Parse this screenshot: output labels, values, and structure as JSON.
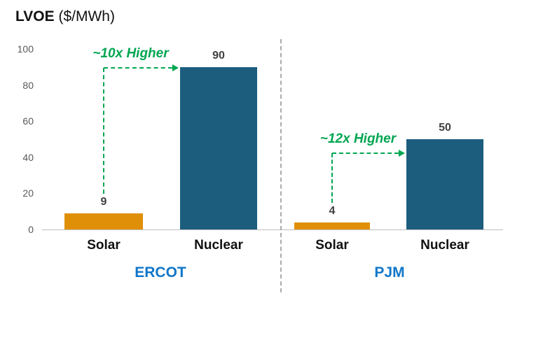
{
  "title": {
    "label_bold": "LVOE",
    "label_unit": " ($/MWh)"
  },
  "colors": {
    "solar_bar": "#E09008",
    "nuclear_bar": "#1C5D7E",
    "annotation_green": "#00A651",
    "group_label_blue": "#0F76C8",
    "axis_line": "#BFBFBF",
    "divider": "#ABABAB",
    "tick_text": "#595959",
    "value_text": "#404040"
  },
  "chart_data": {
    "type": "bar",
    "title": "LVOE ($/MWh)",
    "ylabel": "LVOE ($/MWh)",
    "xlabel": "",
    "ylim": [
      0,
      100
    ],
    "yticks": [
      0,
      20,
      40,
      60,
      80,
      100
    ],
    "categories": [
      "Solar",
      "Nuclear"
    ],
    "groups": [
      {
        "name": "ERCOT",
        "annotation": "~10x Higher",
        "values": [
          9,
          90
        ]
      },
      {
        "name": "PJM",
        "annotation": "~12x Higher",
        "values": [
          4,
          50
        ]
      }
    ],
    "grid": false,
    "legend": false
  }
}
